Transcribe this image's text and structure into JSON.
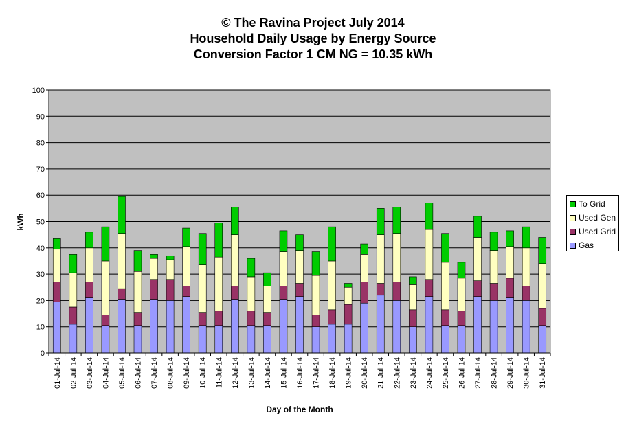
{
  "chart_data": {
    "type": "bar",
    "stacked": true,
    "title_lines": [
      "© The Ravina Project July 2014",
      "Household Daily Usage by Energy Source",
      "Conversion Factor 1 CM NG = 10.35 kWh"
    ],
    "xlabel": "Day of the Month",
    "ylabel": "kWh",
    "ylim": [
      0,
      100
    ],
    "yticks": [
      0,
      10,
      20,
      30,
      40,
      50,
      60,
      70,
      80,
      90,
      100
    ],
    "grid": true,
    "legend_position": "right",
    "plot_background": "#c0c0c0",
    "categories": [
      "01-Jul-14",
      "02-Jul-14",
      "03-Jul-14",
      "04-Jul-14",
      "05-Jul-14",
      "06-Jul-14",
      "07-Jul-14",
      "08-Jul-14",
      "09-Jul-14",
      "10-Jul-14",
      "11-Jul-14",
      "12-Jul-14",
      "13-Jul-14",
      "14-Jul-14",
      "15-Jul-14",
      "16-Jul-14",
      "17-Jul-14",
      "18-Jul-14",
      "19-Jul-14",
      "20-Jul-14",
      "21-Jul-14",
      "22-Jul-14",
      "23-Jul-14",
      "24-Jul-14",
      "25-Jul-14",
      "26-Jul-14",
      "27-Jul-14",
      "28-Jul-14",
      "29-Jul-14",
      "30-Jul-14",
      "31-Jul-14"
    ],
    "series": [
      {
        "name": "Gas",
        "color": "#9999ff",
        "values": [
          19.5,
          11,
          21,
          10.5,
          20.5,
          10.5,
          20.5,
          20,
          21.5,
          10.5,
          10.5,
          20.5,
          10.5,
          10.5,
          20.5,
          21.5,
          10,
          11,
          11,
          19,
          22,
          20,
          10,
          21.5,
          10.5,
          10.5,
          21.5,
          20,
          21,
          20,
          10.5
        ]
      },
      {
        "name": "Used Grid",
        "color": "#993366",
        "values": [
          7.5,
          6.5,
          6,
          4,
          4,
          5,
          7.5,
          8,
          4,
          5,
          5.5,
          5,
          5.5,
          5,
          5,
          5,
          4.5,
          5.5,
          7.5,
          8,
          4.5,
          7,
          6.5,
          6.5,
          6,
          5.5,
          6,
          6.5,
          7.5,
          5.5,
          6.5
        ]
      },
      {
        "name": "Used Gen",
        "color": "#ffffc0",
        "values": [
          12.5,
          13,
          13,
          20.5,
          21,
          15.5,
          8,
          7.5,
          15,
          18,
          20.5,
          19.5,
          13,
          10,
          13,
          12.5,
          15,
          18.5,
          6.5,
          10.5,
          18.5,
          18.5,
          9.5,
          19,
          18,
          12.5,
          16.5,
          12.5,
          12,
          14.5,
          17
        ]
      },
      {
        "name": "To Grid",
        "color": "#00cc00",
        "values": [
          4,
          7,
          6,
          13,
          14,
          8,
          1.5,
          1.5,
          7,
          12,
          13,
          10.5,
          7,
          5,
          8,
          6,
          9,
          13,
          1.5,
          4,
          10,
          10,
          3,
          10,
          11,
          6,
          8,
          7,
          6,
          8,
          10
        ]
      }
    ]
  }
}
